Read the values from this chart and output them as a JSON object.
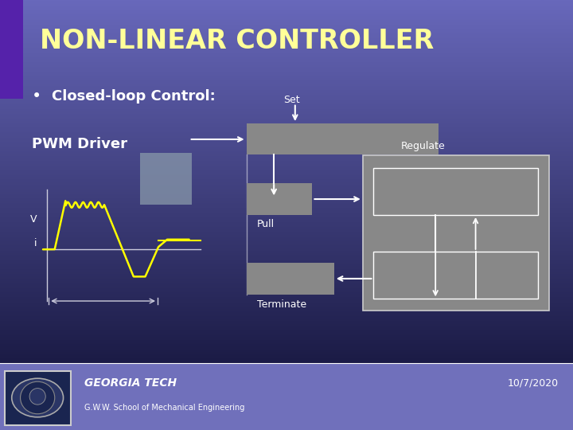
{
  "title": "NON-LINEAR CONTROLLER",
  "title_color": "#FFFF99",
  "title_fontsize": 24,
  "bullet_text": "Closed-loop Control:",
  "bullet_color": "#FFFFFF",
  "bullet_fontsize": 13,
  "pwm_label": "PWM Driver",
  "pwm_color": "#FFFFFF",
  "pwm_fontsize": 13,
  "bg_top_color": "#0A0A2A",
  "bg_bottom_color": "#6666BB",
  "footer_institution": "GEORGIA TECH",
  "footer_sub": "G.W.W. School of Mechanical Engineering",
  "footer_date": "10/7/2020",
  "footer_text_color": "#FFFFFF",
  "arrow_color": "#FFFFFF",
  "waveform_color": "#FFFF00",
  "label_set": "Set",
  "label_pull": "Pull",
  "label_terminate": "Terminate",
  "label_regulate": "Regulate",
  "label_v": "V",
  "label_i": "i",
  "left_strip_color": "#5522AA",
  "box_gray": "#888888",
  "box_light_gray": "#9999AA",
  "regulate_outer_color": "#888888",
  "regulate_inner_color": "#888888"
}
